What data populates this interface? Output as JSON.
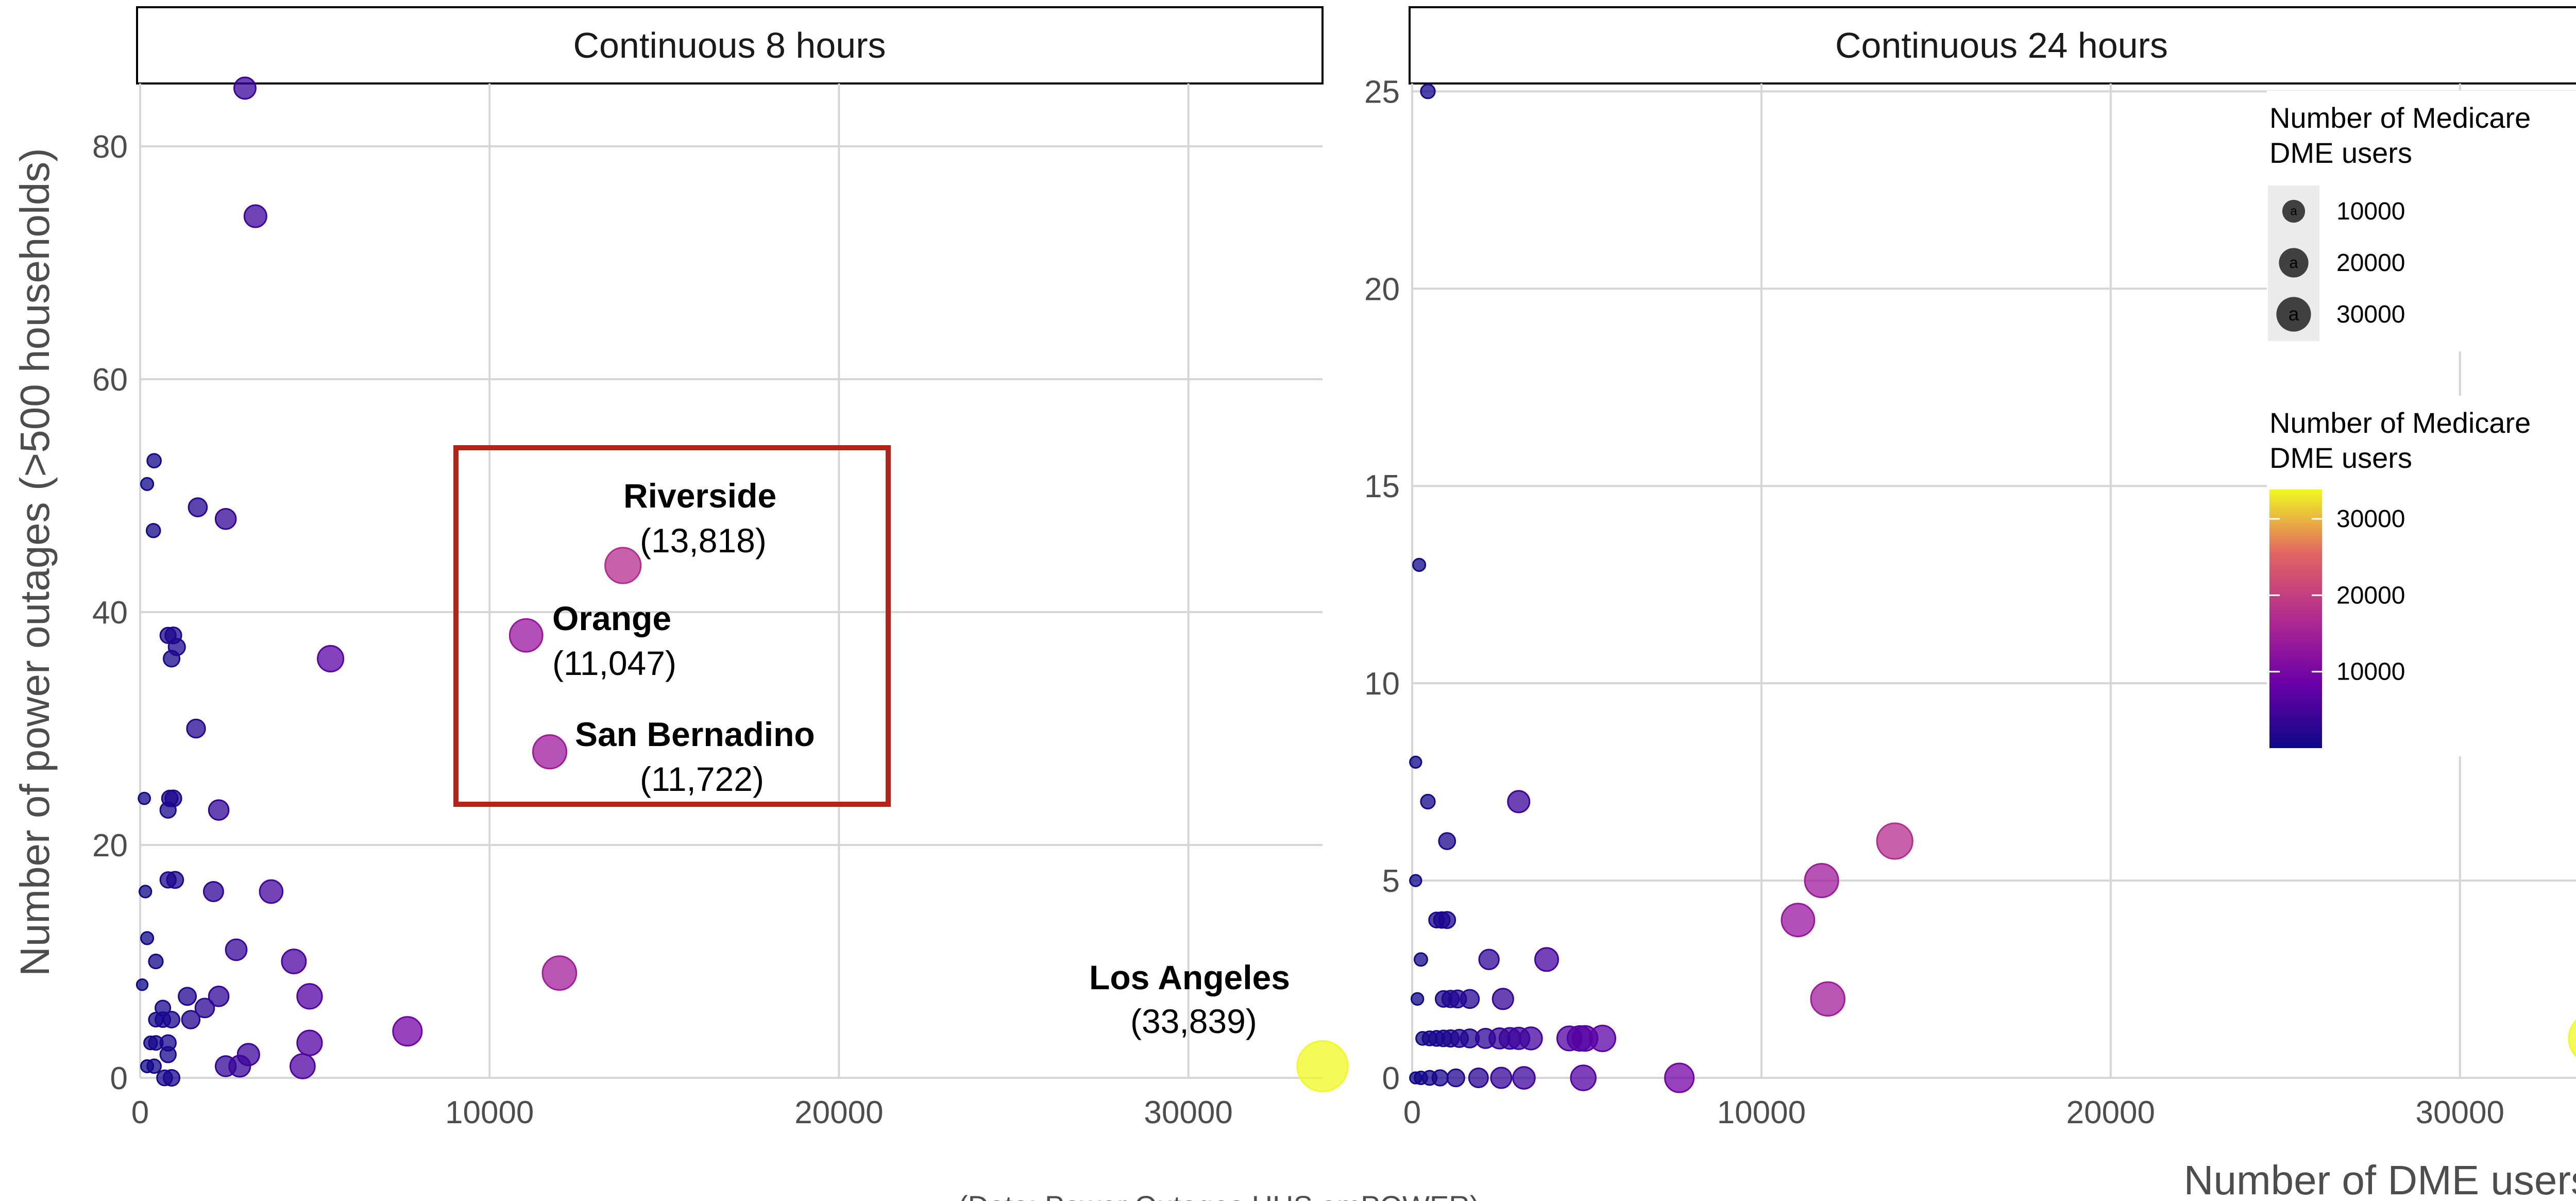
{
  "chart_data": {
    "type": "scatter",
    "x_axis_title": "Number of DME users",
    "y_axis_title": "Number of power outages (>500 households)",
    "caption": "(Data: Power Outages         HHS emPOWER)",
    "colors": {
      "low": "#0d0887",
      "mid": "#cc4778",
      "high": "#f0f921"
    },
    "legend_size": {
      "title": "Number of Medicare\nDME users",
      "breaks": [
        10000,
        20000,
        30000
      ],
      "glyph": "a"
    },
    "legend_color": {
      "title": "Number of Medicare\nDME users",
      "breaks": [
        10000,
        20000,
        30000
      ],
      "range": [
        0,
        33839
      ]
    },
    "panels": [
      {
        "strip": "Continuous 8 hours",
        "xlim": [
          0,
          33839
        ],
        "ylim": [
          0,
          85
        ],
        "xticks": [
          0,
          10000,
          20000,
          30000
        ],
        "yticks": [
          0,
          20,
          40,
          60,
          80
        ],
        "highlight_box": {
          "x": [
            9000,
            21500
          ],
          "y": [
            23.5,
            54.5
          ],
          "color": "#b22418"
        },
        "annotations": [
          {
            "name": "Riverside",
            "value": "(13,818)",
            "x": 13818,
            "y": 44
          },
          {
            "name": "Orange",
            "value": "(11,047)",
            "x": 11047,
            "y": 38
          },
          {
            "name": "San Bernadino",
            "value": "(11,722)",
            "x": 11722,
            "y": 28
          },
          {
            "name": "Los Angeles",
            "value": "(33,839)",
            "x": 33839,
            "y": 1
          }
        ],
        "points": [
          [
            3000,
            85
          ],
          [
            3300,
            74
          ],
          [
            400,
            53
          ],
          [
            200,
            51
          ],
          [
            1650,
            49
          ],
          [
            2450,
            48
          ],
          [
            380,
            47
          ],
          [
            13818,
            44
          ],
          [
            11047,
            38
          ],
          [
            800,
            38
          ],
          [
            950,
            38
          ],
          [
            1050,
            37
          ],
          [
            900,
            36
          ],
          [
            5450,
            36
          ],
          [
            1600,
            30
          ],
          [
            11722,
            28
          ],
          [
            120,
            24
          ],
          [
            850,
            24
          ],
          [
            950,
            24
          ],
          [
            800,
            23
          ],
          [
            2250,
            23
          ],
          [
            150,
            16
          ],
          [
            2100,
            16
          ],
          [
            3750,
            16
          ],
          [
            200,
            12
          ],
          [
            800,
            17
          ],
          [
            1000,
            17
          ],
          [
            2750,
            11
          ],
          [
            450,
            10
          ],
          [
            4400,
            10
          ],
          [
            12000,
            9
          ],
          [
            60,
            8
          ],
          [
            1350,
            7
          ],
          [
            2250,
            7
          ],
          [
            4850,
            7
          ],
          [
            300,
            3
          ],
          [
            450,
            3
          ],
          [
            650,
            6
          ],
          [
            1850,
            6
          ],
          [
            450,
            5
          ],
          [
            650,
            5
          ],
          [
            900,
            5
          ],
          [
            1450,
            5
          ],
          [
            7650,
            4
          ],
          [
            800,
            3
          ],
          [
            4850,
            3
          ],
          [
            3100,
            2
          ],
          [
            800,
            2
          ],
          [
            2450,
            1
          ],
          [
            2850,
            1
          ],
          [
            4650,
            1
          ],
          [
            200,
            1
          ],
          [
            400,
            1
          ],
          [
            700,
            0
          ],
          [
            900,
            0
          ],
          [
            33839,
            1
          ]
        ]
      },
      {
        "strip": "Continuous 24 hours",
        "xlim": [
          0,
          33839
        ],
        "ylim": [
          0,
          25
        ],
        "xticks": [
          0,
          10000,
          20000,
          30000
        ],
        "yticks": [
          0,
          5,
          10,
          15,
          20,
          25
        ],
        "points": [
          [
            450,
            25
          ],
          [
            200,
            13
          ],
          [
            100,
            8
          ],
          [
            3050,
            7
          ],
          [
            450,
            7
          ],
          [
            1000,
            6
          ],
          [
            100,
            5
          ],
          [
            13818,
            6
          ],
          [
            11722,
            5
          ],
          [
            11047,
            4
          ],
          [
            700,
            4
          ],
          [
            850,
            4
          ],
          [
            1000,
            4
          ],
          [
            250,
            3
          ],
          [
            2200,
            3
          ],
          [
            3850,
            3
          ],
          [
            11900,
            2
          ],
          [
            150,
            2
          ],
          [
            900,
            2
          ],
          [
            1100,
            2
          ],
          [
            1300,
            2
          ],
          [
            1650,
            2
          ],
          [
            2600,
            2
          ],
          [
            300,
            1
          ],
          [
            500,
            1
          ],
          [
            700,
            1
          ],
          [
            900,
            1
          ],
          [
            1100,
            1
          ],
          [
            1350,
            1
          ],
          [
            1650,
            1
          ],
          [
            2100,
            1
          ],
          [
            2500,
            1
          ],
          [
            2800,
            1
          ],
          [
            3050,
            1
          ],
          [
            3400,
            1
          ],
          [
            4500,
            1
          ],
          [
            4800,
            1
          ],
          [
            4950,
            1
          ],
          [
            5450,
            1
          ],
          [
            100,
            0
          ],
          [
            250,
            0
          ],
          [
            500,
            0
          ],
          [
            800,
            0
          ],
          [
            1250,
            0
          ],
          [
            1900,
            0
          ],
          [
            2550,
            0
          ],
          [
            3200,
            0
          ],
          [
            4900,
            0
          ],
          [
            7650,
            0
          ],
          [
            33839,
            1
          ]
        ]
      }
    ]
  }
}
